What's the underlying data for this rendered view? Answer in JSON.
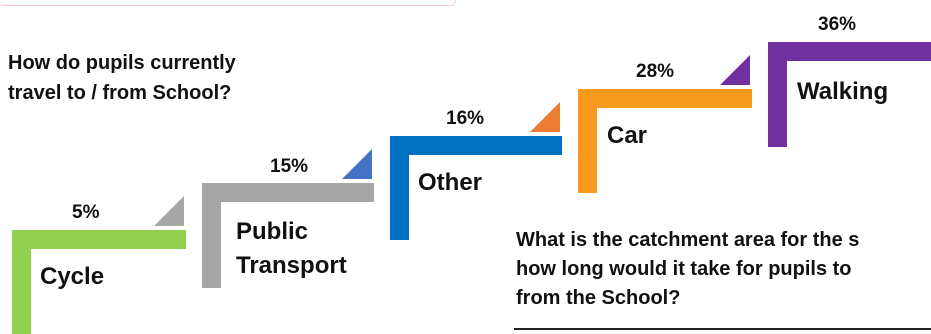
{
  "questions": {
    "travel": "How do pupils currently\ntravel to / from School?",
    "catchment": "What is the catchment area for the s\nhow long would it take for pupils to\nfrom the School?"
  },
  "steps": [
    {
      "label": "Cycle",
      "percent": "5%",
      "color": "#92d050"
    },
    {
      "label": "Public\nTransport",
      "percent": "15%",
      "color": "#a6a6a6",
      "triangle_color": "#4472c4"
    },
    {
      "label": "Other",
      "percent": "16%",
      "color": "#0070c0",
      "triangle_color": "#ed7d31"
    },
    {
      "label": "Car",
      "percent": "28%",
      "color": "#f79a1d",
      "triangle_color": "#7030a0"
    },
    {
      "label": "Walking",
      "percent": "36%",
      "color": "#7030a0"
    }
  ],
  "chart_data": {
    "type": "bar",
    "categories": [
      "Cycle",
      "Public Transport",
      "Other",
      "Car",
      "Walking"
    ],
    "values": [
      5,
      15,
      16,
      28,
      36
    ]
  }
}
